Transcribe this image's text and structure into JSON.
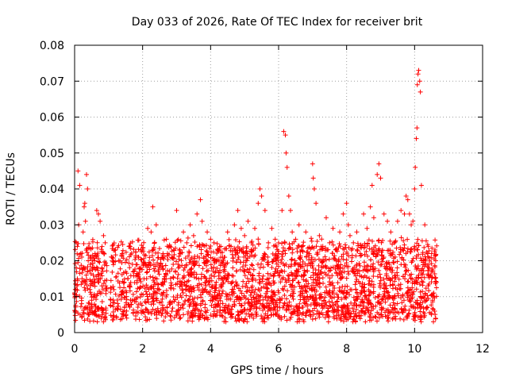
{
  "chart_data": {
    "type": "scatter",
    "title": "Day 033 of 2026, Rate Of TEC Index for receiver brit",
    "xlabel": "GPS time / hours",
    "ylabel": "ROTI / TECUs",
    "xlim": [
      0,
      12
    ],
    "ylim": [
      0,
      0.08
    ],
    "x_ticks": [
      0,
      2,
      4,
      6,
      8,
      10,
      12
    ],
    "x_tick_labels": [
      "0",
      "2",
      "4",
      "6",
      "8",
      "10",
      "12"
    ],
    "y_ticks": [
      0,
      0.01,
      0.02,
      0.03,
      0.04,
      0.05,
      0.06,
      0.07,
      0.08
    ],
    "y_tick_labels": [
      "0",
      "0.01",
      "0.02",
      "0.03",
      "0.04",
      "0.05",
      "0.06",
      "0.07",
      "0.08"
    ],
    "grid": true,
    "marker": "+",
    "series": [
      {
        "name": "ROTI",
        "color": "#ff0000",
        "points": [
          [
            0.02,
            0.012
          ],
          [
            0.05,
            0.018
          ],
          [
            0.08,
            0.024
          ],
          [
            0.1,
            0.045
          ],
          [
            0.12,
            0.03
          ],
          [
            0.15,
            0.041
          ],
          [
            0.18,
            0.022
          ],
          [
            0.22,
            0.015
          ],
          [
            0.25,
            0.028
          ],
          [
            0.28,
            0.035
          ],
          [
            0.3,
            0.036
          ],
          [
            0.32,
            0.031
          ],
          [
            0.35,
            0.044
          ],
          [
            0.38,
            0.04
          ],
          [
            0.4,
            0.02
          ],
          [
            0.45,
            0.012
          ],
          [
            0.5,
            0.009
          ],
          [
            0.55,
            0.016
          ],
          [
            0.6,
            0.022
          ],
          [
            0.65,
            0.034
          ],
          [
            0.7,
            0.033
          ],
          [
            0.75,
            0.031
          ],
          [
            0.8,
            0.018
          ],
          [
            0.85,
            0.027
          ],
          [
            0.9,
            0.025
          ],
          [
            1.1,
            0.021
          ],
          [
            1.2,
            0.023
          ],
          [
            1.3,
            0.02
          ],
          [
            1.4,
            0.022
          ],
          [
            1.5,
            0.017
          ],
          [
            1.6,
            0.024
          ],
          [
            1.7,
            0.019
          ],
          [
            1.8,
            0.021
          ],
          [
            1.9,
            0.015
          ],
          [
            2.0,
            0.023
          ],
          [
            2.15,
            0.029
          ],
          [
            2.25,
            0.028
          ],
          [
            2.3,
            0.035
          ],
          [
            2.4,
            0.03
          ],
          [
            2.5,
            0.018
          ],
          [
            2.6,
            0.022
          ],
          [
            2.7,
            0.026
          ],
          [
            2.8,
            0.024
          ],
          [
            2.9,
            0.019
          ],
          [
            3.0,
            0.034
          ],
          [
            3.1,
            0.022
          ],
          [
            3.2,
            0.028
          ],
          [
            3.3,
            0.025
          ],
          [
            3.4,
            0.03
          ],
          [
            3.5,
            0.027
          ],
          [
            3.6,
            0.033
          ],
          [
            3.7,
            0.037
          ],
          [
            3.75,
            0.031
          ],
          [
            3.8,
            0.021
          ],
          [
            3.9,
            0.028
          ],
          [
            4.0,
            0.026
          ],
          [
            4.1,
            0.025
          ],
          [
            4.2,
            0.023
          ],
          [
            4.3,
            0.024
          ],
          [
            4.4,
            0.021
          ],
          [
            4.5,
            0.028
          ],
          [
            4.6,
            0.024
          ],
          [
            4.7,
            0.03
          ],
          [
            4.8,
            0.034
          ],
          [
            4.9,
            0.029
          ],
          [
            5.0,
            0.027
          ],
          [
            5.1,
            0.031
          ],
          [
            5.2,
            0.025
          ],
          [
            5.3,
            0.029
          ],
          [
            5.4,
            0.036
          ],
          [
            5.45,
            0.04
          ],
          [
            5.5,
            0.038
          ],
          [
            5.6,
            0.034
          ],
          [
            5.7,
            0.025
          ],
          [
            5.8,
            0.029
          ],
          [
            5.9,
            0.026
          ],
          [
            6.0,
            0.022
          ],
          [
            6.1,
            0.034
          ],
          [
            6.15,
            0.056
          ],
          [
            6.2,
            0.055
          ],
          [
            6.22,
            0.05
          ],
          [
            6.25,
            0.046
          ],
          [
            6.3,
            0.038
          ],
          [
            6.35,
            0.034
          ],
          [
            6.4,
            0.028
          ],
          [
            6.5,
            0.026
          ],
          [
            6.6,
            0.03
          ],
          [
            6.7,
            0.024
          ],
          [
            6.8,
            0.028
          ],
          [
            6.9,
            0.022
          ],
          [
            7.0,
            0.047
          ],
          [
            7.02,
            0.043
          ],
          [
            7.05,
            0.04
          ],
          [
            7.1,
            0.036
          ],
          [
            7.2,
            0.027
          ],
          [
            7.3,
            0.024
          ],
          [
            7.4,
            0.032
          ],
          [
            7.5,
            0.025
          ],
          [
            7.6,
            0.029
          ],
          [
            7.7,
            0.023
          ],
          [
            7.8,
            0.028
          ],
          [
            7.9,
            0.033
          ],
          [
            8.0,
            0.036
          ],
          [
            8.05,
            0.03
          ],
          [
            8.1,
            0.027
          ],
          [
            8.2,
            0.025
          ],
          [
            8.3,
            0.028
          ],
          [
            8.4,
            0.022
          ],
          [
            8.5,
            0.033
          ],
          [
            8.6,
            0.029
          ],
          [
            8.7,
            0.035
          ],
          [
            8.75,
            0.041
          ],
          [
            8.8,
            0.032
          ],
          [
            8.9,
            0.044
          ],
          [
            8.95,
            0.047
          ],
          [
            9.0,
            0.043
          ],
          [
            9.1,
            0.033
          ],
          [
            9.2,
            0.031
          ],
          [
            9.3,
            0.028
          ],
          [
            9.4,
            0.025
          ],
          [
            9.5,
            0.031
          ],
          [
            9.6,
            0.034
          ],
          [
            9.7,
            0.033
          ],
          [
            9.75,
            0.038
          ],
          [
            9.8,
            0.037
          ],
          [
            9.85,
            0.033
          ],
          [
            9.9,
            0.03
          ],
          [
            9.95,
            0.031
          ],
          [
            10.0,
            0.04
          ],
          [
            10.02,
            0.046
          ],
          [
            10.05,
            0.054
          ],
          [
            10.07,
            0.057
          ],
          [
            10.08,
            0.069
          ],
          [
            10.1,
            0.072
          ],
          [
            10.12,
            0.073
          ],
          [
            10.15,
            0.07
          ],
          [
            10.17,
            0.067
          ],
          [
            10.2,
            0.041
          ],
          [
            10.3,
            0.03
          ],
          [
            10.4,
            0.024
          ],
          [
            10.5,
            0.022
          ],
          [
            10.6,
            0.023
          ],
          [
            10.62,
            0.02
          ]
        ],
        "dense_band": {
          "x_range": [
            0.0,
            10.65
          ],
          "y_range": [
            0.004,
            0.025
          ],
          "gap_hours": [
            0.95,
            1.05
          ]
        }
      }
    ]
  }
}
